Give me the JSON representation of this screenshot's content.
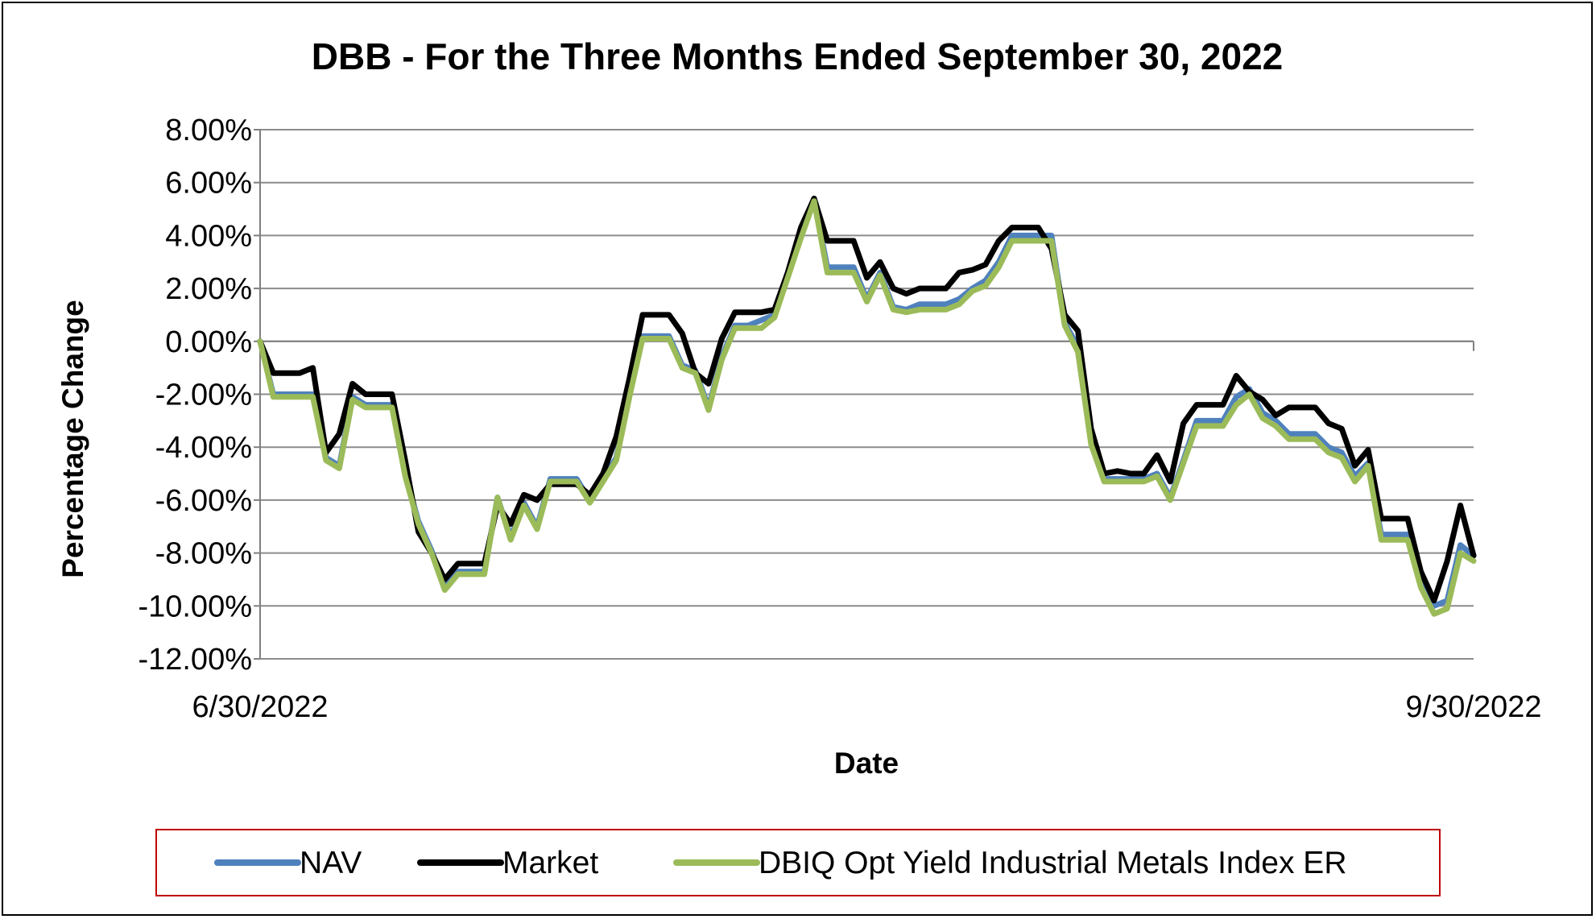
{
  "chart_data": {
    "type": "line",
    "title": "DBB - For the Three Months Ended September 30, 2022",
    "xlabel": "Date",
    "ylabel": "Percentage Change",
    "x_tick_labels": [
      "6/30/2022",
      "9/30/2022"
    ],
    "y_tick_labels": [
      "8.00%",
      "6.00%",
      "4.00%",
      "2.00%",
      "0.00%",
      "-2.00%",
      "-4.00%",
      "-6.00%",
      "-8.00%",
      "-10.00%",
      "-12.00%"
    ],
    "ylim": [
      -12,
      8
    ],
    "y_unit": "%",
    "grid": true,
    "legend_position": "bottom",
    "series": [
      {
        "name": "NAV",
        "color": "#4f81bd",
        "values": [
          0.0,
          -2.0,
          -2.0,
          -2.0,
          -2.0,
          -4.4,
          -4.7,
          -2.1,
          -2.4,
          -2.4,
          -2.4,
          -5.0,
          -6.8,
          -7.9,
          -9.3,
          -8.7,
          -8.7,
          -8.7,
          -5.9,
          -7.4,
          -6.1,
          -7.0,
          -5.2,
          -5.2,
          -5.2,
          -6.0,
          -5.2,
          -4.4,
          -2.0,
          0.2,
          0.2,
          0.2,
          -0.9,
          -1.1,
          -2.5,
          -0.6,
          0.6,
          0.6,
          0.8,
          1.0,
          2.5,
          4.0,
          5.4,
          2.8,
          2.8,
          2.8,
          1.6,
          2.6,
          1.3,
          1.2,
          1.4,
          1.4,
          1.4,
          1.6,
          2.0,
          2.3,
          3.0,
          4.0,
          4.0,
          4.0,
          4.0,
          0.7,
          -0.2,
          -3.8,
          -5.2,
          -5.2,
          -5.2,
          -5.2,
          -5.0,
          -5.9,
          -4.5,
          -3.0,
          -3.0,
          -3.0,
          -2.1,
          -1.8,
          -2.7,
          -3.0,
          -3.5,
          -3.5,
          -3.5,
          -4.0,
          -4.2,
          -5.1,
          -4.6,
          -7.3,
          -7.3,
          -7.3,
          -9.0,
          -10.0,
          -9.8,
          -7.7,
          -8.1
        ]
      },
      {
        "name": "Market",
        "color": "#000000",
        "values": [
          0.0,
          -1.2,
          -1.2,
          -1.2,
          -1.0,
          -4.2,
          -3.5,
          -1.6,
          -2.0,
          -2.0,
          -2.0,
          -4.5,
          -7.2,
          -8.0,
          -9.0,
          -8.4,
          -8.4,
          -8.4,
          -6.2,
          -6.9,
          -5.8,
          -6.0,
          -5.4,
          -5.4,
          -5.4,
          -5.8,
          -5.0,
          -3.6,
          -1.4,
          1.0,
          1.0,
          1.0,
          0.3,
          -1.2,
          -1.6,
          0.1,
          1.1,
          1.1,
          1.1,
          1.2,
          2.6,
          4.3,
          5.4,
          3.8,
          3.8,
          3.8,
          2.4,
          3.0,
          2.0,
          1.8,
          2.0,
          2.0,
          2.0,
          2.6,
          2.7,
          2.9,
          3.8,
          4.3,
          4.3,
          4.3,
          3.5,
          1.0,
          0.4,
          -3.3,
          -5.0,
          -4.9,
          -5.0,
          -5.0,
          -4.3,
          -5.3,
          -3.1,
          -2.4,
          -2.4,
          -2.4,
          -1.3,
          -1.9,
          -2.2,
          -2.8,
          -2.5,
          -2.5,
          -2.5,
          -3.1,
          -3.3,
          -4.7,
          -4.1,
          -6.7,
          -6.7,
          -6.7,
          -8.7,
          -9.8,
          -8.3,
          -6.2,
          -8.1
        ]
      },
      {
        "name": "DBIQ Opt Yield Industrial Metals Index ER",
        "color": "#9bbb59",
        "values": [
          0.0,
          -2.1,
          -2.1,
          -2.1,
          -2.1,
          -4.5,
          -4.8,
          -2.2,
          -2.5,
          -2.5,
          -2.5,
          -5.1,
          -6.9,
          -8.0,
          -9.4,
          -8.8,
          -8.8,
          -8.8,
          -5.9,
          -7.5,
          -6.2,
          -7.1,
          -5.3,
          -5.3,
          -5.3,
          -6.1,
          -5.3,
          -4.5,
          -2.1,
          0.1,
          0.1,
          0.1,
          -1.0,
          -1.2,
          -2.6,
          -0.7,
          0.5,
          0.5,
          0.5,
          0.9,
          2.4,
          3.9,
          5.3,
          2.6,
          2.6,
          2.6,
          1.5,
          2.5,
          1.2,
          1.1,
          1.2,
          1.2,
          1.2,
          1.4,
          1.9,
          2.1,
          2.8,
          3.8,
          3.8,
          3.8,
          3.8,
          0.6,
          -0.4,
          -3.9,
          -5.3,
          -5.3,
          -5.3,
          -5.3,
          -5.1,
          -6.0,
          -4.6,
          -3.2,
          -3.2,
          -3.2,
          -2.4,
          -2.0,
          -2.9,
          -3.2,
          -3.7,
          -3.7,
          -3.7,
          -4.2,
          -4.4,
          -5.3,
          -4.7,
          -7.5,
          -7.5,
          -7.5,
          -9.3,
          -10.3,
          -10.1,
          -8.0,
          -8.3
        ]
      }
    ]
  }
}
